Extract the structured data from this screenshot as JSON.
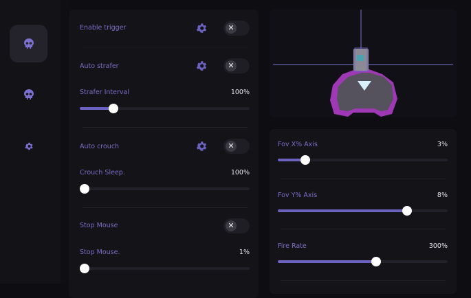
{
  "sidebar": {
    "items": [
      {
        "icon": "skull-icon",
        "active": true
      },
      {
        "icon": "skull-icon",
        "active": false
      },
      {
        "icon": "gear-icon",
        "active": false
      }
    ]
  },
  "left_panel": {
    "enable_trigger": {
      "label": "Enable trigger",
      "enabled": false
    },
    "auto_strafer": {
      "label": "Auto strafer",
      "enabled": false
    },
    "strafer_interval": {
      "label": "Strafer Interval",
      "value": "100%",
      "fill_percent": 20
    },
    "auto_crouch": {
      "label": "Auto crouch",
      "enabled": false
    },
    "crouch_sleep": {
      "label": "Crouch Sleep.",
      "value": "100%",
      "fill_percent": 0
    },
    "stop_mouse": {
      "label": "Stop Mouse",
      "enabled": false
    },
    "stop_mouse_value": {
      "label": "Stop Mouse.",
      "value": "1%",
      "fill_percent": 0
    }
  },
  "right_panel": {
    "fov_x": {
      "label": "Fov X% Axis",
      "value": "3%",
      "fill_percent": 16
    },
    "fov_y": {
      "label": "Fov Y% Axis",
      "value": "8%",
      "fill_percent": 76
    },
    "fire_rate": {
      "label": "Fire Rate",
      "value": "300%",
      "fill_percent": 58
    }
  },
  "toggle_off_glyph": "✕",
  "colors": {
    "accent": "#6b62c0",
    "label": "#7a6fc6",
    "background": "#0e0d12",
    "panel": "#141318"
  }
}
